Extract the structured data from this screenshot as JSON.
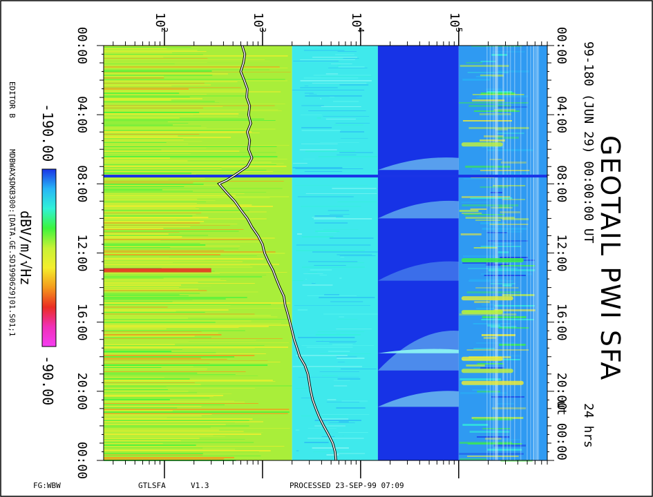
{
  "header": {
    "title": "GEOTAIL PWI SFA",
    "subtitle": "99-180 (JUN 29) 00:00:00 UT",
    "duration": "24 hrs"
  },
  "colorbar": {
    "min_label": "-190.00",
    "max_label": "-90.00",
    "unit_label": "dBV/m/√Hz",
    "colors": [
      "#1a34e6",
      "#27b6f6",
      "#31f2d8",
      "#3df43d",
      "#c7f236",
      "#f4ee2d",
      "#f49a1c",
      "#ea2d22",
      "#f02fb8",
      "#f53ef2"
    ]
  },
  "left_notes": {
    "editor": "EDITOR B",
    "file": "MDBWAX$DKB300:[DATA.GE.SD1990629]01.S01;1"
  },
  "footer": {
    "fg": "FG:WBW",
    "program": "GTLSFA",
    "version": "V1.3",
    "processed": "PROCESSED 23-SEP-99   07:09"
  },
  "chart_data": {
    "type": "heatmap",
    "title": "GEOTAIL PWI SFA",
    "x_axis": {
      "label": "",
      "scale": "log",
      "unit": "Hz",
      "range": [
        24,
        800000
      ],
      "ticks": [
        100,
        1000,
        10000,
        100000
      ],
      "tick_labels": [
        {
          "base": "10",
          "exp": "2"
        },
        {
          "base": "10",
          "exp": "3"
        },
        {
          "base": "10",
          "exp": "4"
        },
        {
          "base": "10",
          "exp": "5"
        }
      ]
    },
    "y_axis": {
      "label": "UT",
      "range_hours": [
        0,
        24
      ],
      "tick_hours": [
        0,
        4,
        8,
        12,
        16,
        20,
        24
      ],
      "tick_labels": [
        "00:00",
        "04:00",
        "08:00",
        "12:00",
        "16:00",
        "20:00",
        "00:00"
      ],
      "right_tick_labels": [
        "00:00",
        "04:00",
        "08:00",
        "12:00",
        "16:00",
        "20:00",
        "ut 00:00"
      ]
    },
    "value_range_dB": [
      -190,
      -90
    ],
    "white_line_hz": [
      [
        0.0,
        620
      ],
      [
        0.5,
        660
      ],
      [
        1.0,
        640
      ],
      [
        1.5,
        600
      ],
      [
        2.0,
        650
      ],
      [
        2.5,
        700
      ],
      [
        3.0,
        690
      ],
      [
        3.5,
        740
      ],
      [
        4.0,
        720
      ],
      [
        4.5,
        760
      ],
      [
        5.0,
        700
      ],
      [
        5.5,
        740
      ],
      [
        6.0,
        720
      ],
      [
        6.5,
        780
      ],
      [
        7.0,
        700
      ],
      [
        7.5,
        520
      ],
      [
        7.8,
        430
      ],
      [
        8.0,
        360
      ],
      [
        8.5,
        430
      ],
      [
        9.0,
        520
      ],
      [
        9.5,
        600
      ],
      [
        10.0,
        700
      ],
      [
        10.5,
        780
      ],
      [
        11.0,
        900
      ],
      [
        11.5,
        1000
      ],
      [
        12.0,
        1050
      ],
      [
        12.5,
        1150
      ],
      [
        13.0,
        1280
      ],
      [
        13.5,
        1380
      ],
      [
        14.0,
        1500
      ],
      [
        14.5,
        1650
      ],
      [
        15.0,
        1700
      ],
      [
        15.5,
        1800
      ],
      [
        16.0,
        1900
      ],
      [
        16.5,
        2000
      ],
      [
        17.0,
        2100
      ],
      [
        17.5,
        2250
      ],
      [
        18.0,
        2400
      ],
      [
        18.5,
        2700
      ],
      [
        19.0,
        2900
      ],
      [
        19.5,
        3000
      ],
      [
        20.0,
        3100
      ],
      [
        20.5,
        3250
      ],
      [
        21.0,
        3500
      ],
      [
        21.5,
        3800
      ],
      [
        22.0,
        4200
      ],
      [
        22.5,
        4700
      ],
      [
        23.0,
        5200
      ],
      [
        23.5,
        5500
      ],
      [
        24.0,
        5600
      ]
    ],
    "bands": [
      {
        "hz": [
          24,
          2000
        ],
        "dominant": "yellow-green"
      },
      {
        "hz": [
          2000,
          15000
        ],
        "dominant": "cyan"
      },
      {
        "hz": [
          15000,
          100000
        ],
        "dominant": "blue"
      },
      {
        "hz": [
          100000,
          800000
        ],
        "dominant": "cyan-blue"
      }
    ],
    "events": [
      {
        "hour": 7.55,
        "type": "data-gap",
        "color": "#1a34e6"
      },
      {
        "hour": 13.0,
        "type": "bright-low-frequency",
        "color": "#ea2d22"
      }
    ]
  }
}
